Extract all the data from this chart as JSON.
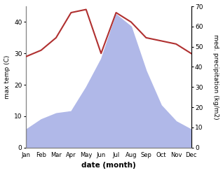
{
  "months": [
    "Jan",
    "Feb",
    "Mar",
    "Apr",
    "May",
    "Jun",
    "Jul",
    "Aug",
    "Sep",
    "Oct",
    "Nov",
    "Dec"
  ],
  "x": [
    1,
    2,
    3,
    4,
    5,
    6,
    7,
    8,
    9,
    10,
    11,
    12
  ],
  "temperature": [
    29,
    31,
    35,
    43,
    44,
    30,
    43,
    40,
    35,
    34,
    33,
    30
  ],
  "precipitation": [
    9,
    14,
    17,
    18,
    30,
    44,
    66,
    60,
    38,
    21,
    13,
    9
  ],
  "temp_color": "#b03030",
  "precip_color": "#b0b8e8",
  "temp_ylim": [
    0,
    45
  ],
  "precip_ylim": [
    0,
    70
  ],
  "temp_yticks": [
    0,
    10,
    20,
    30,
    40
  ],
  "precip_yticks": [
    0,
    10,
    20,
    30,
    40,
    50,
    60,
    70
  ],
  "xlabel": "date (month)",
  "ylabel_left": "max temp (C)",
  "ylabel_right": "med. precipitation (kg/m2)",
  "background_color": "#ffffff"
}
